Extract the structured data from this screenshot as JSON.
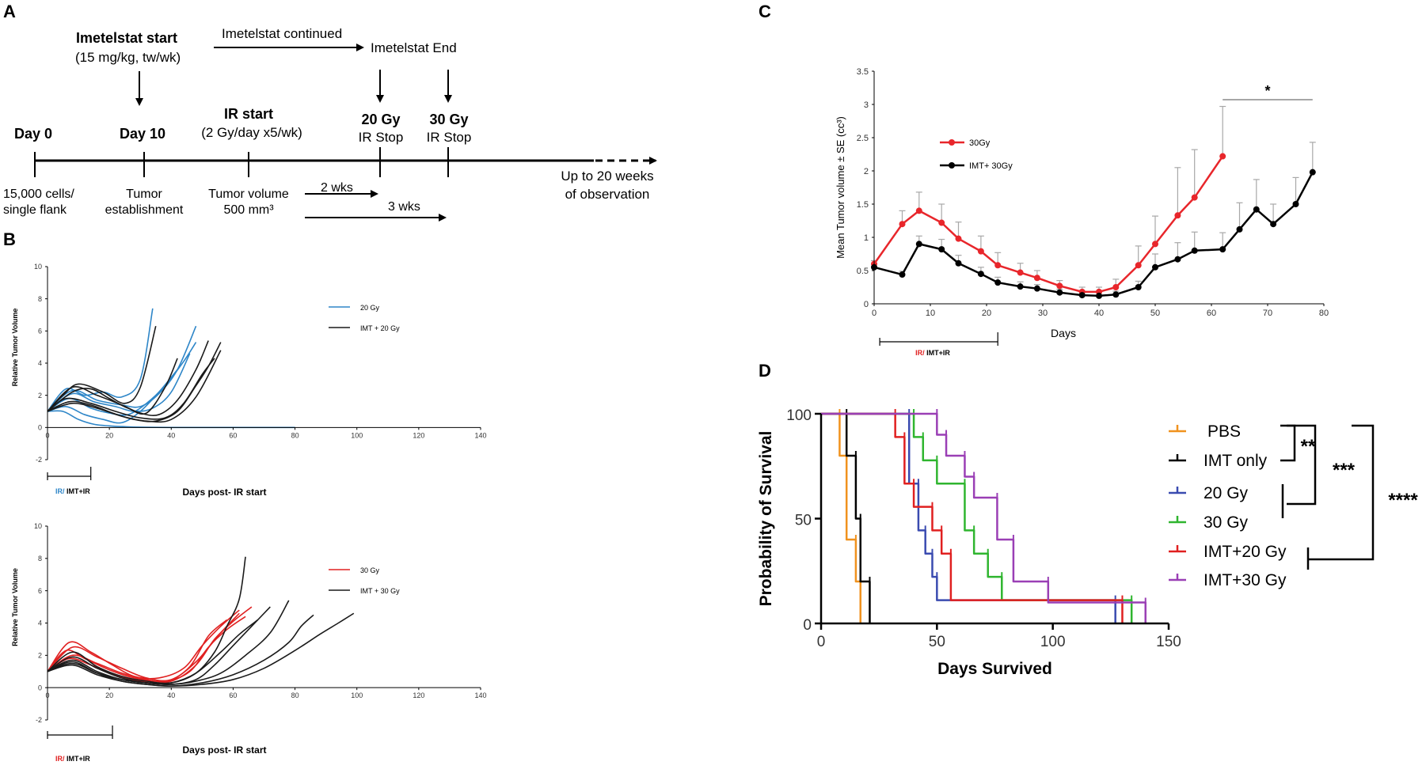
{
  "panel_labels": {
    "a": "A",
    "b": "B",
    "c": "C",
    "d": "D"
  },
  "timeline": {
    "imetelstat_start_title": "Imetelstat start",
    "imetelstat_start_dose": "(15 mg/kg, tw/wk)",
    "imetelstat_continued": "Imetelstat continued",
    "imetelstat_end": "Imetelstat End",
    "day0": "Day 0",
    "day10": "Day 10",
    "ir_start_title": "IR start",
    "ir_start_dose": "(2 Gy/day x5/wk)",
    "gy20": "20 Gy",
    "gy20_stop": "IR Stop",
    "gy30": "30 Gy",
    "gy30_stop": "IR Stop",
    "cells_1": "15,000 cells/",
    "cells_2": "single flank",
    "tumor_1": "Tumor",
    "tumor_2": "establishment",
    "volume_1": "Tumor volume",
    "volume_2": "500 mm³",
    "wks2": "2 wks",
    "wks3": "3 wks",
    "obs_1": "Up to 20 weeks",
    "obs_2": "of observation"
  },
  "chart_data": [
    {
      "panel": "B-top",
      "type": "line",
      "xlabel": "Days post- IR start",
      "ylabel": "Relative Tumor Volume",
      "xlim": [
        0,
        140
      ],
      "ylim": [
        -2,
        10
      ],
      "xticks": [
        "0",
        "20",
        "40",
        "60",
        "80",
        "100",
        "120",
        "140"
      ],
      "yticks": [
        "-2",
        "0",
        "2",
        "4",
        "6",
        "8",
        "10"
      ],
      "legend": [
        "20 Gy",
        "IMT + 20 Gy"
      ],
      "bar_label_a": "IR/",
      "bar_label_b": " IMT+IR",
      "bar_x": [
        0,
        14
      ],
      "series": [
        {
          "name": "20 Gy",
          "color": "#2e86c8",
          "x": [
            0,
            6,
            12,
            18,
            24,
            30,
            34
          ],
          "y": [
            1,
            2.4,
            2.0,
            2.2,
            1.9,
            3.0,
            7.4
          ]
        },
        {
          "name": "20 Gy",
          "color": "#2e86c8",
          "x": [
            0,
            8,
            16,
            24,
            30,
            36,
            42,
            48
          ],
          "y": [
            1,
            2.3,
            1.7,
            1.4,
            1.3,
            2.1,
            3.6,
            6.3
          ]
        },
        {
          "name": "20 Gy",
          "color": "#2e86c8",
          "x": [
            0,
            7,
            14,
            20,
            26,
            32,
            38,
            44,
            48
          ],
          "y": [
            1,
            1.8,
            1.2,
            0.9,
            0.8,
            1.5,
            2.6,
            4.1,
            5.3
          ]
        },
        {
          "name": "20 Gy",
          "color": "#2e86c8",
          "x": [
            0,
            8,
            15,
            22,
            28,
            34,
            40,
            46
          ],
          "y": [
            1,
            2.1,
            1.6,
            1.3,
            1.0,
            1.2,
            2.2,
            4.6
          ]
        },
        {
          "name": "20 Gy",
          "color": "#2e86c8",
          "x": [
            0,
            6,
            12,
            18,
            24,
            30,
            36,
            42
          ],
          "y": [
            1,
            1.3,
            0.8,
            0.5,
            0.3,
            1.0,
            2.2,
            3.6
          ]
        },
        {
          "name": "20 Gy",
          "color": "#2e86c8",
          "x": [
            0,
            5,
            10,
            15,
            20,
            25,
            30,
            40,
            60,
            80
          ],
          "y": [
            1,
            1.0,
            0.5,
            0.2,
            0.1,
            0.05,
            0.02,
            0,
            0,
            0
          ]
        },
        {
          "name": "IMT + 20 Gy",
          "color": "#1a1a1a",
          "x": [
            0,
            5,
            10,
            18,
            25,
            30,
            35
          ],
          "y": [
            1,
            2.0,
            2.7,
            2.2,
            1.5,
            2.5,
            6.3
          ]
        },
        {
          "name": "IMT + 20 Gy",
          "color": "#1a1a1a",
          "x": [
            0,
            8,
            14,
            20,
            26,
            32,
            38,
            42
          ],
          "y": [
            1,
            2.2,
            2.4,
            1.8,
            1.2,
            0.9,
            2.5,
            4.3
          ]
        },
        {
          "name": "IMT + 20 Gy",
          "color": "#1a1a1a",
          "x": [
            0,
            8,
            16,
            24,
            30,
            36,
            42,
            48,
            52
          ],
          "y": [
            1,
            2.5,
            2.0,
            1.4,
            0.9,
            0.8,
            1.7,
            3.6,
            5.4
          ]
        },
        {
          "name": "IMT + 20 Gy",
          "color": "#1a1a1a",
          "x": [
            0,
            6,
            14,
            22,
            30,
            38,
            44,
            50,
            54
          ],
          "y": [
            1,
            1.8,
            1.5,
            1.0,
            0.6,
            0.6,
            1.5,
            3.3,
            4.3
          ]
        },
        {
          "name": "IMT + 20 Gy",
          "color": "#1a1a1a",
          "x": [
            0,
            7,
            14,
            21,
            28,
            35,
            42,
            48,
            52,
            56
          ],
          "y": [
            1,
            1.6,
            1.4,
            0.9,
            0.5,
            0.4,
            1.0,
            2.6,
            3.8,
            5.3
          ]
        },
        {
          "name": "IMT + 20 Gy",
          "color": "#1a1a1a",
          "x": [
            0,
            8,
            16,
            24,
            32,
            40,
            48,
            56
          ],
          "y": [
            1,
            1.5,
            1.2,
            0.7,
            0.4,
            0.5,
            1.9,
            4.8
          ]
        }
      ]
    },
    {
      "panel": "B-bottom",
      "type": "line",
      "xlabel": "Days post- IR start",
      "ylabel": "Relative Tumor Volume",
      "xlim": [
        0,
        140
      ],
      "ylim": [
        -2,
        10
      ],
      "xticks": [
        "0",
        "20",
        "40",
        "60",
        "80",
        "100",
        "120",
        "140"
      ],
      "yticks": [
        "-2",
        "0",
        "2",
        "4",
        "6",
        "8",
        "10"
      ],
      "legend": [
        "30 Gy",
        "IMT + 30 Gy"
      ],
      "bar_label_a": "IR/",
      "bar_label_b": " IMT+IR",
      "bar_x": [
        0,
        21
      ],
      "series": [
        {
          "name": "30 Gy",
          "color": "#e02020",
          "x": [
            0,
            7,
            14,
            21,
            28,
            36,
            44,
            50,
            56,
            62
          ],
          "y": [
            1,
            2.8,
            2.2,
            1.4,
            0.7,
            0.6,
            1.2,
            2.6,
            3.8,
            4.8
          ]
        },
        {
          "name": "30 Gy",
          "color": "#e02020",
          "x": [
            0,
            6,
            12,
            20,
            28,
            38,
            46,
            52,
            58,
            64
          ],
          "y": [
            1,
            2.3,
            1.8,
            1.1,
            0.6,
            0.4,
            1.0,
            2.5,
            3.6,
            4.4
          ]
        },
        {
          "name": "30 Gy",
          "color": "#e02020",
          "x": [
            0,
            8,
            16,
            24,
            32,
            40,
            48,
            54,
            60,
            66
          ],
          "y": [
            1,
            2.0,
            1.5,
            0.9,
            0.5,
            0.4,
            1.4,
            3.0,
            4.1,
            5.0
          ]
        },
        {
          "name": "30 Gy",
          "color": "#e02020",
          "x": [
            0,
            7,
            14,
            22,
            30,
            38,
            46,
            52,
            58
          ],
          "y": [
            1,
            1.8,
            1.4,
            0.8,
            0.4,
            0.3,
            1.3,
            3.2,
            4.2
          ]
        },
        {
          "name": "30 Gy",
          "color": "#e02020",
          "x": [
            0,
            8,
            16,
            24,
            32,
            40,
            48,
            56,
            62
          ],
          "y": [
            1,
            2.5,
            1.9,
            1.2,
            0.6,
            0.5,
            1.6,
            3.4,
            4.6
          ]
        },
        {
          "name": "IMT + 30 Gy",
          "color": "#1a1a1a",
          "x": [
            0,
            8,
            16,
            24,
            32,
            40,
            48,
            54,
            58,
            62,
            64
          ],
          "y": [
            1,
            2.2,
            1.3,
            0.7,
            0.4,
            0.3,
            0.9,
            2.2,
            3.8,
            5.5,
            8.1
          ]
        },
        {
          "name": "IMT + 30 Gy",
          "color": "#1a1a1a",
          "x": [
            0,
            8,
            16,
            24,
            32,
            40,
            48,
            54,
            60,
            66,
            72
          ],
          "y": [
            1,
            1.9,
            1.2,
            0.6,
            0.3,
            0.2,
            0.5,
            1.4,
            2.6,
            3.8,
            5.0
          ]
        },
        {
          "name": "IMT + 30 Gy",
          "color": "#1a1a1a",
          "x": [
            0,
            8,
            16,
            24,
            32,
            40,
            48,
            56,
            64,
            72,
            78
          ],
          "y": [
            1,
            1.7,
            1.0,
            0.5,
            0.3,
            0.2,
            0.4,
            0.9,
            2.0,
            3.4,
            5.4
          ]
        },
        {
          "name": "IMT + 30 Gy",
          "color": "#1a1a1a",
          "x": [
            0,
            8,
            16,
            24,
            32,
            40,
            50,
            60,
            70,
            78,
            82,
            86
          ],
          "y": [
            1,
            1.6,
            0.9,
            0.4,
            0.2,
            0.1,
            0.3,
            0.8,
            1.7,
            2.8,
            3.8,
            4.5
          ]
        },
        {
          "name": "IMT + 30 Gy",
          "color": "#1a1a1a",
          "x": [
            0,
            8,
            16,
            24,
            32,
            40,
            50,
            60,
            70,
            80,
            88,
            94,
            99
          ],
          "y": [
            1,
            1.4,
            0.8,
            0.4,
            0.2,
            0.1,
            0.2,
            0.5,
            1.2,
            2.3,
            3.3,
            4.0,
            4.6
          ]
        },
        {
          "name": "IMT + 30 Gy",
          "color": "#1a1a1a",
          "x": [
            0,
            8,
            16,
            24,
            32,
            40,
            48,
            56,
            62,
            68
          ],
          "y": [
            1,
            1.5,
            0.9,
            0.5,
            0.3,
            0.3,
            0.9,
            2.2,
            3.3,
            4.2
          ]
        }
      ]
    },
    {
      "panel": "C",
      "type": "line",
      "xlabel": "Days",
      "ylabel": "Mean Tumor volume ± SE (cc³)",
      "xlim": [
        0,
        80
      ],
      "ylim": [
        0,
        3.5
      ],
      "xticks": [
        "0",
        "10",
        "20",
        "30",
        "40",
        "50",
        "60",
        "70",
        "80"
      ],
      "yticks": [
        "0",
        "0.5",
        "1",
        "1.5",
        "2",
        "2.5",
        "3",
        "3.5"
      ],
      "legend": [
        "30Gy",
        "IMT+ 30Gy"
      ],
      "bar_label_a": "IR/",
      "bar_label_b": " IMT+IR",
      "bar_x": [
        1,
        22
      ],
      "significance": "*",
      "significance_x": [
        62,
        78
      ],
      "series": [
        {
          "name": "30Gy",
          "color": "#e8262b",
          "x": [
            0,
            5,
            8,
            12,
            15,
            19,
            22,
            26,
            29,
            33,
            37,
            40,
            43,
            47,
            50,
            54,
            57,
            62
          ],
          "y": [
            0.6,
            1.2,
            1.4,
            1.22,
            0.98,
            0.79,
            0.58,
            0.47,
            0.39,
            0.27,
            0.18,
            0.18,
            0.25,
            0.58,
            0.9,
            1.33,
            1.6,
            2.22
          ],
          "se": [
            0.05,
            0.2,
            0.28,
            0.28,
            0.25,
            0.23,
            0.19,
            0.14,
            0.11,
            0.08,
            0.07,
            0.07,
            0.12,
            0.29,
            0.42,
            0.72,
            0.72,
            0.75
          ]
        },
        {
          "name": "IMT+ 30Gy",
          "color": "#000000",
          "x": [
            0,
            5,
            8,
            12,
            15,
            19,
            22,
            26,
            29,
            33,
            37,
            40,
            43,
            47,
            50,
            54,
            57,
            62,
            65,
            68,
            71,
            75,
            78
          ],
          "y": [
            0.55,
            0.44,
            0.9,
            0.82,
            0.61,
            0.45,
            0.32,
            0.26,
            0.23,
            0.17,
            0.13,
            0.12,
            0.14,
            0.25,
            0.55,
            0.67,
            0.8,
            0.82,
            1.12,
            1.42,
            1.2,
            1.5,
            1.98
          ],
          "se": [
            0.05,
            0.05,
            0.12,
            0.15,
            0.12,
            0.1,
            0.08,
            0.07,
            0.06,
            0.05,
            0.05,
            0.05,
            0.05,
            0.09,
            0.2,
            0.25,
            0.28,
            0.25,
            0.4,
            0.45,
            0.3,
            0.4,
            0.45
          ]
        }
      ]
    },
    {
      "panel": "D",
      "type": "line",
      "xlabel": "Days Survived",
      "ylabel": "Probability of Survival",
      "xlim": [
        0,
        150
      ],
      "ylim": [
        0,
        100
      ],
      "xticks": [
        "0",
        "50",
        "100",
        "150"
      ],
      "yticks": [
        "0",
        "50",
        "100"
      ],
      "significance": [
        "**",
        "***",
        "****"
      ],
      "series": [
        {
          "name": "PBS",
          "color": "#f0921e",
          "x": [
            0,
            8,
            8,
            11,
            11,
            15,
            15,
            17,
            17
          ],
          "y": [
            100,
            100,
            80,
            80,
            40,
            40,
            20,
            20,
            0
          ]
        },
        {
          "name": "IMT only",
          "color": "#000000",
          "x": [
            0,
            11,
            11,
            15,
            15,
            17,
            17,
            19,
            19,
            21,
            21
          ],
          "y": [
            100,
            100,
            80,
            80,
            50,
            50,
            20,
            20,
            20,
            20,
            0
          ]
        },
        {
          "name": "20 Gy",
          "color": "#3a4bb0",
          "x": [
            0,
            10,
            10,
            38,
            38,
            42,
            42,
            45,
            45,
            48,
            48,
            50,
            50,
            127,
            127
          ],
          "y": [
            100,
            100,
            100,
            100,
            66.7,
            66.7,
            44.4,
            44.4,
            33.3,
            33.3,
            22.2,
            22.2,
            11.1,
            11.1,
            0
          ]
        },
        {
          "name": "30 Gy",
          "color": "#2fb52f",
          "x": [
            0,
            40,
            40,
            44,
            44,
            50,
            50,
            62,
            62,
            66,
            66,
            72,
            72,
            78,
            78,
            134,
            134
          ],
          "y": [
            100,
            100,
            88.9,
            88.9,
            77.8,
            77.8,
            66.7,
            66.7,
            44.4,
            44.4,
            33.3,
            33.3,
            22.2,
            22.2,
            11.1,
            11.1,
            0
          ]
        },
        {
          "name": "IMT+20 Gy",
          "color": "#e02020",
          "x": [
            0,
            32,
            32,
            36,
            36,
            40,
            40,
            48,
            48,
            52,
            52,
            56,
            56,
            130,
            130
          ],
          "y": [
            100,
            100,
            88.9,
            88.9,
            66.7,
            66.7,
            55.6,
            55.6,
            44.4,
            44.4,
            33.3,
            33.3,
            11.1,
            11.1,
            0
          ]
        },
        {
          "name": "IMT+30 Gy",
          "color": "#9a3fb5",
          "x": [
            0,
            50,
            50,
            54,
            54,
            62,
            62,
            66,
            66,
            76,
            76,
            83,
            83,
            98,
            98,
            140,
            140
          ],
          "y": [
            100,
            100,
            90,
            90,
            80,
            80,
            70,
            70,
            60,
            60,
            40,
            40,
            20,
            20,
            10,
            10,
            0
          ]
        }
      ]
    }
  ]
}
